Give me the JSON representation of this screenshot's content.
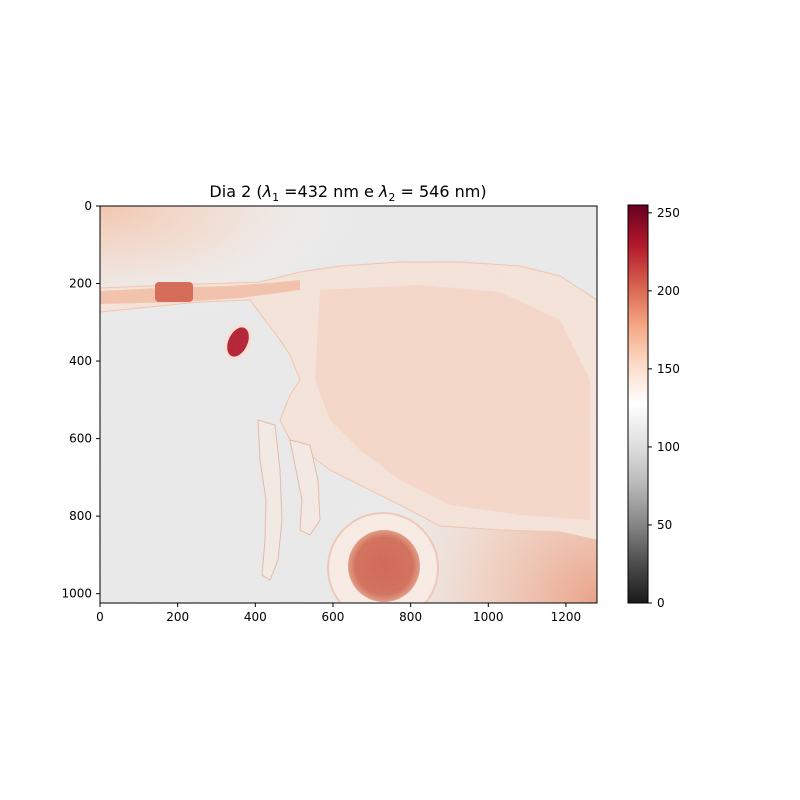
{
  "chart_data": {
    "type": "heatmap",
    "title": "Dia 2 (λ₁ =432 nm e λ₂ = 546 nm)",
    "title_parts": {
      "prefix": "Dia 2 (",
      "lambda1_sub": "1",
      "lambda1_eq": " =432 nm e ",
      "lambda2_sub": "2",
      "lambda2_eq": " = 546 nm)"
    },
    "image_width": 1280,
    "image_height": 1024,
    "xlim": [
      0,
      1280
    ],
    "ylim": [
      1024,
      0
    ],
    "y_inverted": true,
    "xticks": [
      0,
      200,
      400,
      600,
      800,
      1000,
      1200
    ],
    "yticks": [
      0,
      200,
      400,
      600,
      800,
      1000
    ],
    "colorbar": {
      "colormap": "RdGy_r",
      "range": [
        0,
        255
      ],
      "ticks": [
        0,
        50,
        100,
        150,
        200,
        250
      ],
      "colors": [
        "#1a1a1a",
        "#4d4d4d",
        "#878787",
        "#bababa",
        "#e0e0e0",
        "#ffffff",
        "#fddbc7",
        "#f4a582",
        "#d6604d",
        "#b2182b",
        "#67001f"
      ]
    },
    "approx_regions": [
      {
        "label": "background",
        "value": 125
      },
      {
        "label": "upper-left glow",
        "value": 175
      },
      {
        "label": "body tissue",
        "value": 155
      },
      {
        "label": "dark spot A",
        "value": 205,
        "cx": 190,
        "cy": 225
      },
      {
        "label": "dark spot B",
        "value": 230,
        "cx": 350,
        "cy": 350
      },
      {
        "label": "round organ",
        "value": 205,
        "cx": 730,
        "cy": 930
      },
      {
        "label": "lower-right edge",
        "value": 195
      }
    ],
    "legend": "colorbar-right",
    "grid": false
  }
}
